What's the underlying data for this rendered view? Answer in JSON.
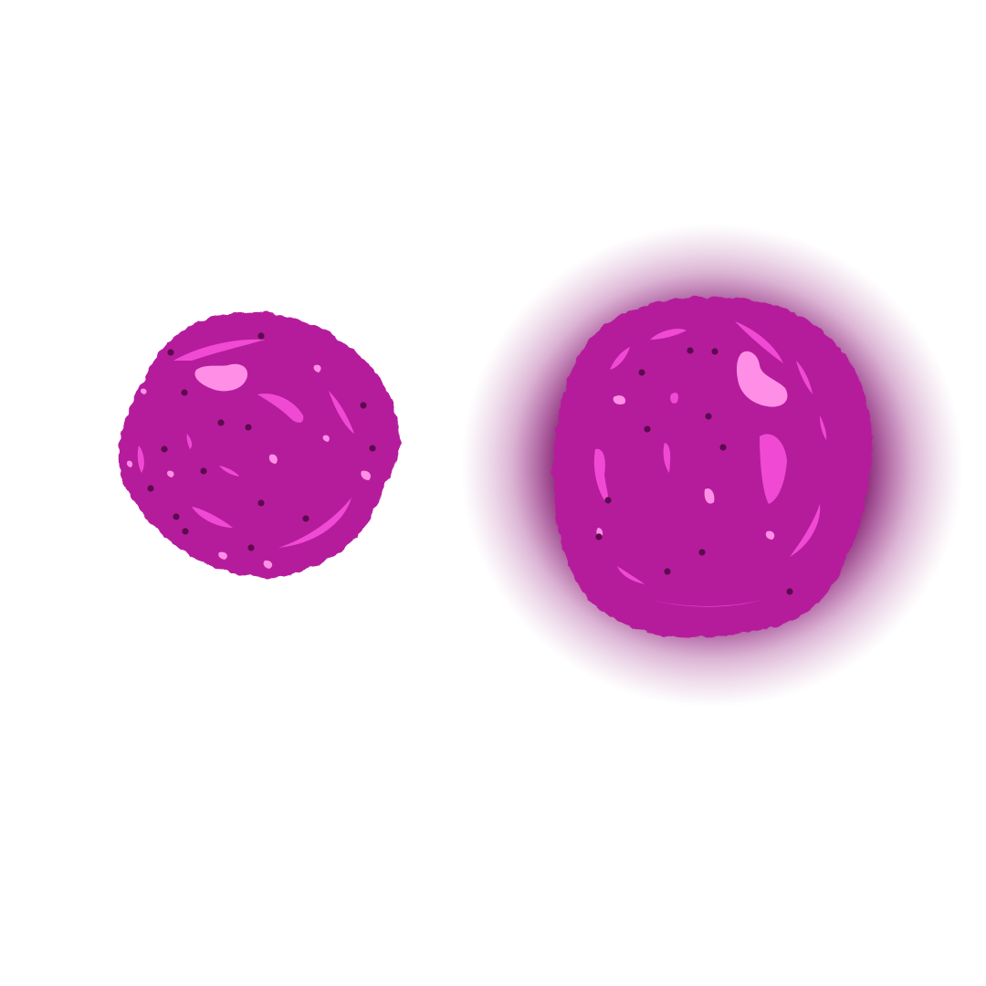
{
  "scene": {
    "background_color": "#ffffff",
    "sprites": [
      {
        "name": "plain-blob",
        "glow": false,
        "colors": {
          "body": "#b51f9c",
          "highlight": "#f04ad4",
          "spot_light": "#ff8fe6",
          "spot_dark": "#5c0a4f"
        }
      },
      {
        "name": "glowing-blob",
        "glow": true,
        "colors": {
          "body": "#b51f9c",
          "highlight": "#f04ad4",
          "spot_light": "#ff8fe6",
          "spot_dark": "#5c0a4f",
          "glow": "#7a0a66"
        }
      }
    ]
  }
}
